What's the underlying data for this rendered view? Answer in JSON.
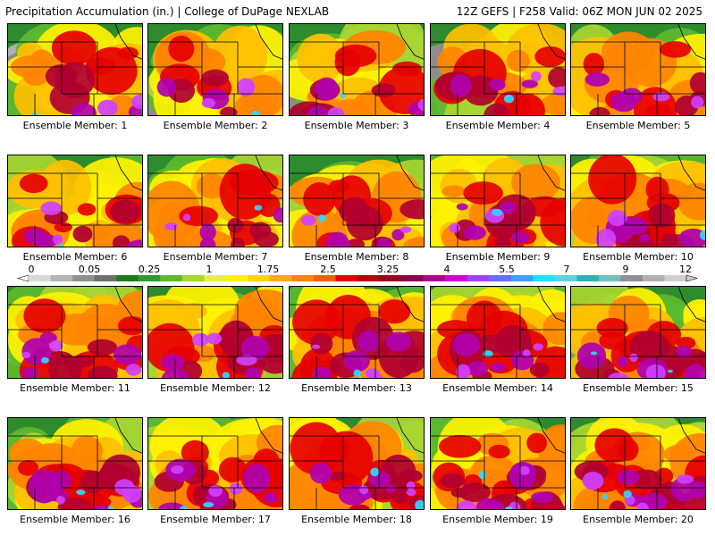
{
  "header": {
    "left": "Precipitation Accumulation (in.) | College of DuPage NEXLAB",
    "right": "12Z GEFS | F258 Valid: 06Z MON JUN 02 2025"
  },
  "colorbar": {
    "labels": [
      "0",
      "0.05",
      "0.25",
      "1",
      "1.75",
      "2.5",
      "3.25",
      "4",
      "5.5",
      "7",
      "9",
      "12"
    ],
    "colors": [
      "#d9d9d9",
      "#b5b5b5",
      "#8f8f8f",
      "#6e6e6e",
      "#1e7a1e",
      "#2e9a2e",
      "#5cb82e",
      "#a8d632",
      "#e8f03a",
      "#fff200",
      "#ffd400",
      "#ffab00",
      "#ff8400",
      "#ff5a00",
      "#e60000",
      "#c00000",
      "#9a0020",
      "#8a0050",
      "#b00090",
      "#d000d0",
      "#a040ff",
      "#6a6aff",
      "#40a0ff",
      "#20e0ff",
      "#60d0e0",
      "#30b0b0",
      "#70c0c0",
      "#909090",
      "#b0b0b0",
      "#d0d0d0"
    ]
  },
  "members": [
    {
      "label": "Ensemble Member: 1"
    },
    {
      "label": "Ensemble Member: 2"
    },
    {
      "label": "Ensemble Member: 3"
    },
    {
      "label": "Ensemble Member: 4"
    },
    {
      "label": "Ensemble Member: 5"
    },
    {
      "label": "Ensemble Member: 6"
    },
    {
      "label": "Ensemble Member: 7"
    },
    {
      "label": "Ensemble Member: 8"
    },
    {
      "label": "Ensemble Member: 9"
    },
    {
      "label": "Ensemble Member: 10"
    },
    {
      "label": "Ensemble Member: 11"
    },
    {
      "label": "Ensemble Member: 12"
    },
    {
      "label": "Ensemble Member: 13"
    },
    {
      "label": "Ensemble Member: 14"
    },
    {
      "label": "Ensemble Member: 15"
    },
    {
      "label": "Ensemble Member: 16"
    },
    {
      "label": "Ensemble Member: 17"
    },
    {
      "label": "Ensemble Member: 18"
    },
    {
      "label": "Ensemble Member: 19"
    },
    {
      "label": "Ensemble Member: 20"
    }
  ]
}
